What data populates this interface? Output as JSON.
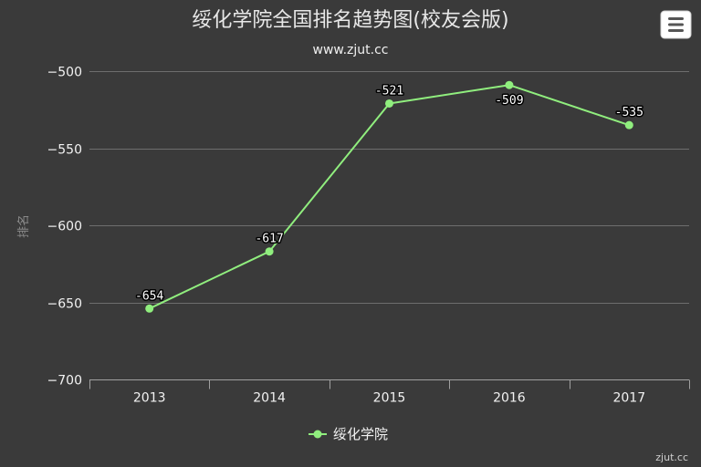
{
  "chart_data": {
    "type": "line",
    "title": "绥化学院全国排名趋势图(校友会版)",
    "subtitle": "www.zjut.cc",
    "ylabel": "排名",
    "categories": [
      "2013",
      "2014",
      "2015",
      "2016",
      "2017"
    ],
    "series": [
      {
        "name": "绥化学院",
        "values": [
          -654,
          -617,
          -521,
          -509,
          -535
        ]
      }
    ],
    "ylim": [
      -700,
      -500
    ],
    "yticks": [
      -500,
      -550,
      -600,
      -650,
      -700
    ],
    "ytick_labels": [
      "−500",
      "−550",
      "−600",
      "−650",
      "−700"
    ],
    "data_labels": [
      "-654",
      "-617",
      "-521",
      "-509",
      "-535"
    ],
    "grid": true,
    "legend": "bottom-center",
    "colors": {
      "background": "#3a3a3a",
      "series": "#90ee7e",
      "grid": "#6e6e6e",
      "axis": "#a0a0a0"
    }
  },
  "menu": {
    "icon": "hamburger-menu-icon"
  },
  "credit": "zjut.cc"
}
